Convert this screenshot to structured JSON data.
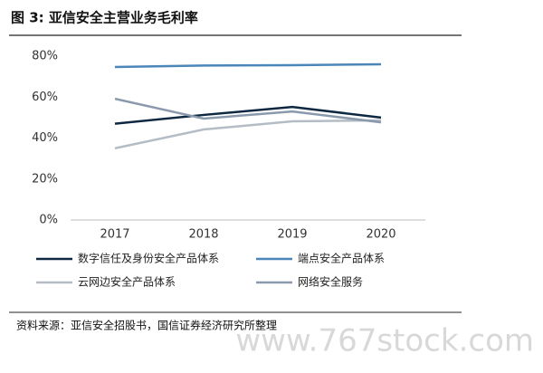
{
  "chart_data": {
    "type": "line",
    "title": "图 3:  亚信安全主营业务毛利率",
    "categories": [
      "2017",
      "2018",
      "2019",
      "2020"
    ],
    "series": [
      {
        "name": "数字信任及身份安全产品体系",
        "color": "#0e2841",
        "values": [
          47,
          51.3,
          55.2,
          50
        ]
      },
      {
        "name": "端点安全产品体系",
        "color": "#4a86b8",
        "values": [
          74.7,
          75.4,
          75.6,
          76
        ]
      },
      {
        "name": "云网边安全产品体系",
        "color": "#b4bcc6",
        "values": [
          35,
          44.2,
          48.2,
          48.6
        ]
      },
      {
        "name": "网络安全服务",
        "color": "#8a9aac",
        "values": [
          59.2,
          49.5,
          53,
          47.7
        ]
      }
    ],
    "ylim": [
      0,
      80
    ],
    "yticks": [
      {
        "value": 0,
        "label": "0%"
      },
      {
        "value": 20,
        "label": "20%"
      },
      {
        "value": 40,
        "label": "40%"
      },
      {
        "value": 60,
        "label": "60%"
      },
      {
        "value": 80,
        "label": "80%"
      }
    ],
    "grid": false,
    "source": "资料来源：亚信安全招股书，国信证券经济研究所整理",
    "watermark": "www.767stock.com"
  }
}
